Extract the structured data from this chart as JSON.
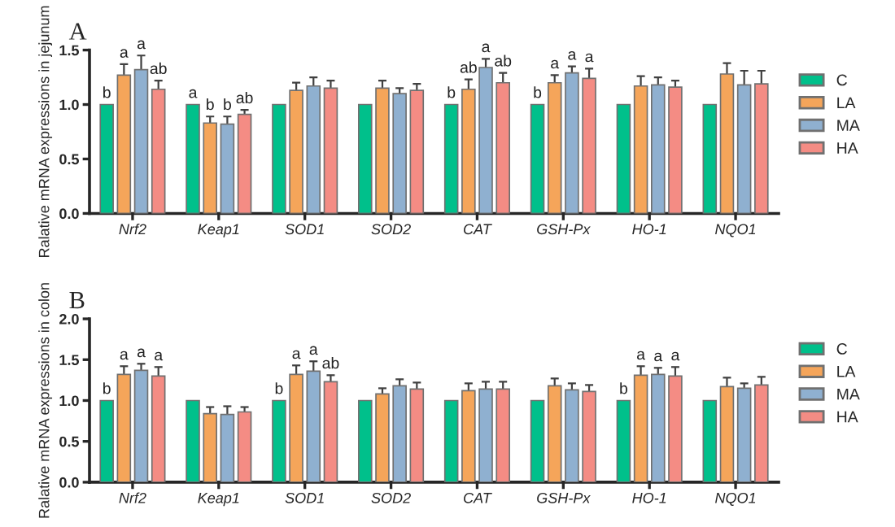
{
  "chart_data": [
    {
      "type": "bar",
      "title": "A",
      "ylabel": "Ralative mRNA expressions in jejunum",
      "categories": [
        "Nrf2",
        "Keap1",
        "SOD1",
        "SOD2",
        "CAT",
        "GSH-Px",
        "HO-1",
        "NQO1"
      ],
      "ylim": [
        0,
        1.5
      ],
      "yticks": [
        {
          "value": 0,
          "label": "0.0"
        },
        {
          "value": 0.5,
          "label": "0.5"
        },
        {
          "value": 1.0,
          "label": "1.0"
        },
        {
          "value": 1.5,
          "label": "1.5"
        }
      ],
      "legend": "right",
      "grid": false,
      "series": [
        {
          "name": "C",
          "color": "#00c08b",
          "values": [
            1,
            1,
            1,
            1,
            1,
            1,
            1,
            1
          ],
          "value_labels": [
            "b",
            "a",
            null,
            null,
            "b",
            "b",
            null,
            null
          ]
        },
        {
          "name": "LA",
          "color": "#f5a55a",
          "values": [
            1.27,
            0.83,
            1.13,
            1.15,
            1.14,
            1.2,
            1.17,
            1.28
          ],
          "errors": [
            0.1,
            0.06,
            0.07,
            0.07,
            0.09,
            0.07,
            0.09,
            0.1
          ],
          "value_labels": [
            "a",
            "b",
            null,
            null,
            "ab",
            "a",
            null,
            null
          ]
        },
        {
          "name": "MA",
          "color": "#8fb0d0",
          "values": [
            1.32,
            0.82,
            1.17,
            1.1,
            1.34,
            1.29,
            1.18,
            1.18
          ],
          "errors": [
            0.13,
            0.07,
            0.08,
            0.05,
            0.08,
            0.06,
            0.07,
            0.13
          ],
          "value_labels": [
            "a",
            "b",
            null,
            null,
            "a",
            "a",
            null,
            null
          ]
        },
        {
          "name": "HA",
          "color": "#f48c84",
          "values": [
            1.14,
            0.91,
            1.15,
            1.13,
            1.2,
            1.24,
            1.16,
            1.19
          ],
          "errors": [
            0.08,
            0.04,
            0.07,
            0.06,
            0.09,
            0.09,
            0.06,
            0.12
          ],
          "value_labels": [
            "ab",
            "ab",
            null,
            null,
            "ab",
            "a",
            null,
            null
          ]
        }
      ]
    },
    {
      "type": "bar",
      "title": "B",
      "ylabel": "Ralative mRNA expressions in colon",
      "categories": [
        "Nrf2",
        "Keap1",
        "SOD1",
        "SOD2",
        "CAT",
        "GSH-Px",
        "HO-1",
        "NQO1"
      ],
      "ylim": [
        0,
        2.0
      ],
      "yticks": [
        {
          "value": 0,
          "label": "0.0"
        },
        {
          "value": 0.5,
          "label": "0.5"
        },
        {
          "value": 1.0,
          "label": "1.0"
        },
        {
          "value": 1.5,
          "label": "1.5"
        },
        {
          "value": 2.0,
          "label": "2.0"
        }
      ],
      "legend": "right",
      "grid": false,
      "series": [
        {
          "name": "C",
          "color": "#00c08b",
          "values": [
            1,
            1,
            1,
            1,
            1,
            1,
            1,
            1
          ],
          "value_labels": [
            "b",
            null,
            "b",
            null,
            null,
            null,
            "b",
            null
          ]
        },
        {
          "name": "LA",
          "color": "#f5a55a",
          "values": [
            1.32,
            0.84,
            1.32,
            1.08,
            1.12,
            1.18,
            1.31,
            1.17
          ],
          "errors": [
            0.1,
            0.08,
            0.11,
            0.07,
            0.09,
            0.09,
            0.11,
            0.11
          ],
          "value_labels": [
            "a",
            null,
            "a",
            null,
            null,
            null,
            "a",
            null
          ]
        },
        {
          "name": "MA",
          "color": "#8fb0d0",
          "values": [
            1.37,
            0.83,
            1.36,
            1.18,
            1.14,
            1.13,
            1.32,
            1.15
          ],
          "errors": [
            0.08,
            0.1,
            0.12,
            0.08,
            0.09,
            0.08,
            0.08,
            0.06
          ],
          "value_labels": [
            "a",
            null,
            "a",
            null,
            null,
            null,
            "a",
            null
          ]
        },
        {
          "name": "HA",
          "color": "#f48c84",
          "values": [
            1.3,
            0.86,
            1.23,
            1.14,
            1.14,
            1.11,
            1.3,
            1.19
          ],
          "errors": [
            0.11,
            0.06,
            0.08,
            0.08,
            0.09,
            0.08,
            0.11,
            0.1
          ],
          "value_labels": [
            "a",
            null,
            "ab",
            null,
            null,
            null,
            "a",
            null
          ]
        }
      ]
    }
  ]
}
